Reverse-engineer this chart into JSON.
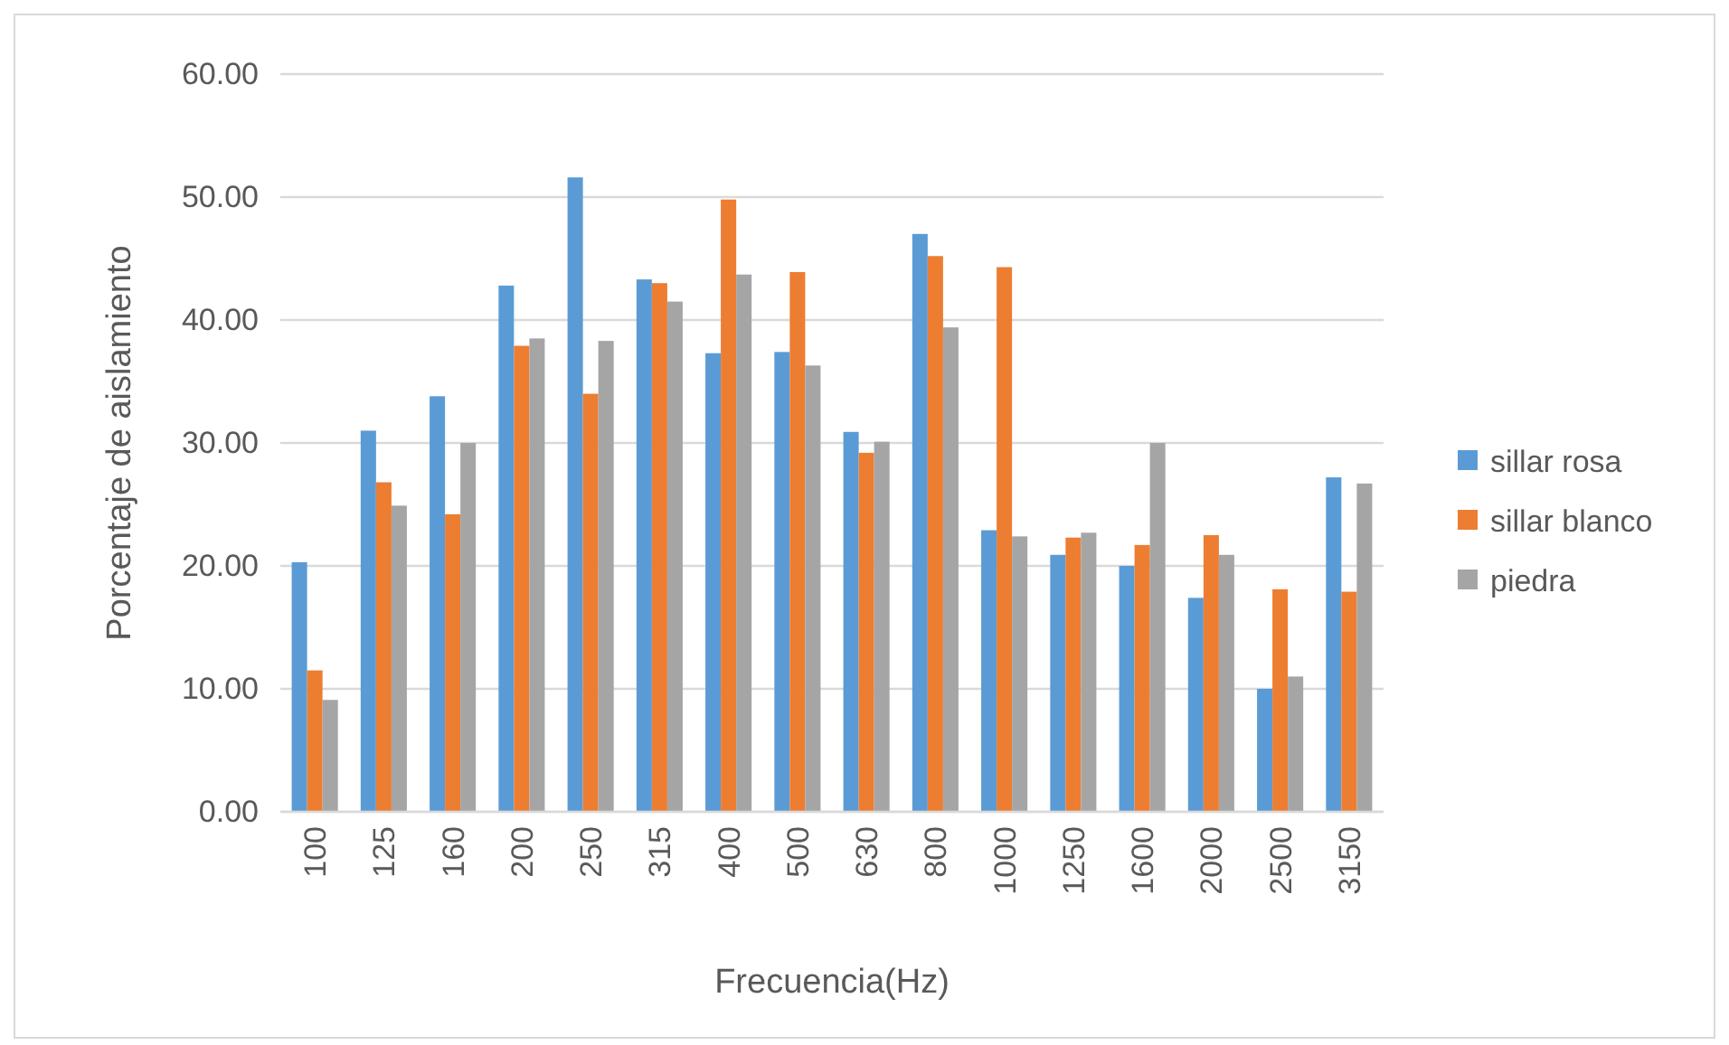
{
  "chart_data": {
    "type": "bar",
    "xlabel": "Frecuencia(Hz)",
    "ylabel": "Porcentaje de aislamiento",
    "categories": [
      "100",
      "125",
      "160",
      "200",
      "250",
      "315",
      "400",
      "500",
      "630",
      "800",
      "1000",
      "1250",
      "1600",
      "2000",
      "2500",
      "3150"
    ],
    "series": [
      {
        "name": "sillar rosa",
        "color": "#5b9bd5",
        "values": [
          20.3,
          31.0,
          33.8,
          42.8,
          51.6,
          43.3,
          37.3,
          37.4,
          30.9,
          47.0,
          22.9,
          20.9,
          20.0,
          17.4,
          10.0,
          27.2
        ]
      },
      {
        "name": "sillar blanco",
        "color": "#ed7d31",
        "values": [
          11.5,
          26.8,
          24.2,
          37.9,
          34.0,
          43.0,
          49.8,
          43.9,
          29.2,
          45.2,
          44.3,
          22.3,
          21.7,
          22.5,
          18.1,
          17.9
        ]
      },
      {
        "name": "piedra",
        "color": "#a5a5a5",
        "values": [
          9.1,
          24.9,
          30.0,
          38.5,
          38.3,
          41.5,
          43.7,
          36.3,
          30.1,
          39.4,
          22.4,
          22.7,
          30.0,
          20.9,
          11.0,
          26.7
        ]
      }
    ],
    "ylim": [
      0,
      60
    ],
    "yticks": [
      {
        "value": 0,
        "label": "0.00"
      },
      {
        "value": 10,
        "label": "10.00"
      },
      {
        "value": 20,
        "label": "20.00"
      },
      {
        "value": 30,
        "label": "30.00"
      },
      {
        "value": 40,
        "label": "40.00"
      },
      {
        "value": 50,
        "label": "50.00"
      },
      {
        "value": 60,
        "label": "60.00"
      }
    ],
    "grid": "y",
    "legend": "right"
  }
}
